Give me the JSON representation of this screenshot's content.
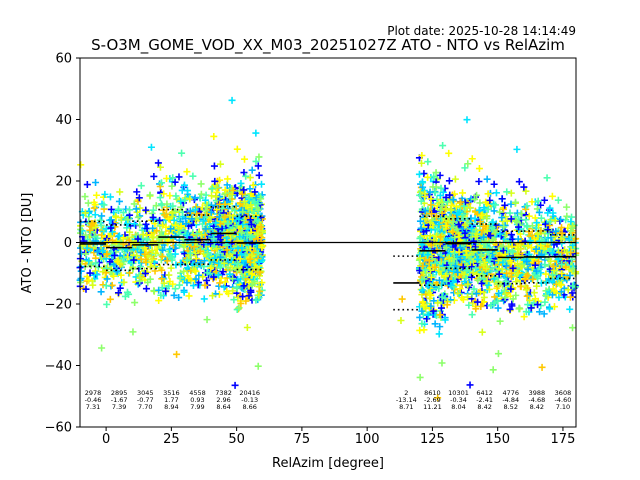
{
  "chart_data": {
    "type": "scatter",
    "plot_date": "Plot date: 2025-10-28 14:14:49",
    "title": "S-O3M_GOME_VOD_XX_M03_20251027Z ATO - NTO vs RelAzim",
    "xlabel": "RelAzim [degree]",
    "ylabel": "ATO - NTO [DU]",
    "xlim": [
      -10,
      180
    ],
    "ylim": [
      -60,
      60
    ],
    "xticks": [
      0,
      25,
      50,
      75,
      100,
      125,
      150,
      175
    ],
    "yticks": [
      -60,
      -40,
      -20,
      0,
      20,
      40,
      60
    ],
    "zero_line": 0,
    "marker": "+",
    "colormap": [
      "#0000ff",
      "#00b4ff",
      "#00e5ff",
      "#4dffb0",
      "#8cff6a",
      "#d8ff1a",
      "#ffff00",
      "#ffc800"
    ],
    "bins": [
      {
        "x_start": -10,
        "x_end": 0,
        "count": "2978",
        "mean": "-0.46",
        "std": "7.31",
        "mean_val": -0.46,
        "std_val": 7.31
      },
      {
        "x_start": 0,
        "x_end": 10,
        "count": "2895",
        "mean": "-1.67",
        "std": "7.39",
        "mean_val": -1.67,
        "std_val": 7.39
      },
      {
        "x_start": 10,
        "x_end": 20,
        "count": "3045",
        "mean": "-0.77",
        "std": "7.70",
        "mean_val": -0.77,
        "std_val": 7.7
      },
      {
        "x_start": 20,
        "x_end": 30,
        "count": "3516",
        "mean": "1.77",
        "std": "8.94",
        "mean_val": 1.77,
        "std_val": 8.94
      },
      {
        "x_start": 30,
        "x_end": 40,
        "count": "4558",
        "mean": "0.93",
        "std": "7.99",
        "mean_val": 0.93,
        "std_val": 7.99
      },
      {
        "x_start": 40,
        "x_end": 50,
        "count": "7382",
        "mean": "2.96",
        "std": "8.64",
        "mean_val": 2.96,
        "std_val": 8.64
      },
      {
        "x_start": 50,
        "x_end": 60,
        "count": "20416",
        "mean": "-0.13",
        "std": "8.66",
        "mean_val": -0.13,
        "std_val": 8.66
      },
      {
        "x_start": 110,
        "x_end": 120,
        "count": "2",
        "mean": "-13.14",
        "std": "8.71",
        "mean_val": -13.14,
        "std_val": 8.71
      },
      {
        "x_start": 120,
        "x_end": 130,
        "count": "8610",
        "mean": "-2.69",
        "std": "11.21",
        "mean_val": -2.69,
        "std_val": 11.21
      },
      {
        "x_start": 130,
        "x_end": 140,
        "count": "10301",
        "mean": "-0.34",
        "std": "8.04",
        "mean_val": -0.34,
        "std_val": 8.04
      },
      {
        "x_start": 140,
        "x_end": 150,
        "count": "6412",
        "mean": "-2.41",
        "std": "8.42",
        "mean_val": -2.41,
        "std_val": 8.42
      },
      {
        "x_start": 150,
        "x_end": 160,
        "count": "4776",
        "mean": "-4.84",
        "std": "8.52",
        "mean_val": -4.84,
        "std_val": 8.52
      },
      {
        "x_start": 160,
        "x_end": 170,
        "count": "3988",
        "mean": "-4.68",
        "std": "8.42",
        "mean_val": -4.68,
        "std_val": 8.42
      },
      {
        "x_start": 170,
        "x_end": 180,
        "count": "3608",
        "mean": "-4.60",
        "std": "7.10",
        "mean_val": -4.6,
        "std_val": 7.1
      }
    ]
  }
}
